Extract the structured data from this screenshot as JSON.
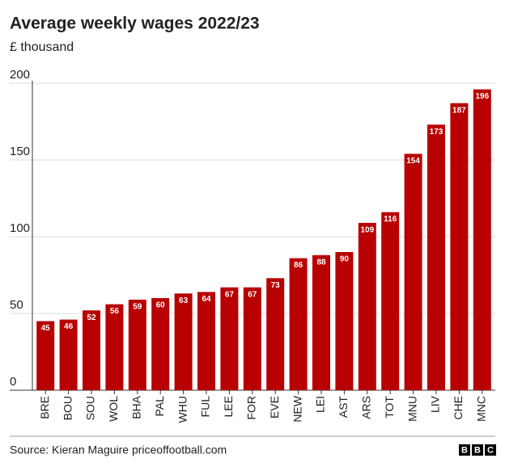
{
  "chart_data": {
    "type": "bar",
    "title": "Average weekly wages 2022/23",
    "subtitle": "£ thousand",
    "categories": [
      "BRE",
      "BOU",
      "SOU",
      "WOL",
      "BHA",
      "PAL",
      "WHU",
      "FUL",
      "LEE",
      "FOR",
      "EVE",
      "NEW",
      "LEI",
      "AST",
      "ARS",
      "TOT",
      "MNU",
      "LIV",
      "CHE",
      "MNC"
    ],
    "values": [
      45,
      46,
      52,
      56,
      59,
      60,
      63,
      64,
      67,
      67,
      73,
      86,
      88,
      90,
      109,
      116,
      154,
      173,
      187,
      196
    ],
    "color": "#b80000",
    "ylim": [
      0,
      200
    ],
    "yticks": [
      0,
      50,
      100,
      150,
      200
    ],
    "grid": true,
    "source": "Source: Kieran Maguire priceoffootball.com",
    "logo": [
      "B",
      "B",
      "C"
    ]
  }
}
